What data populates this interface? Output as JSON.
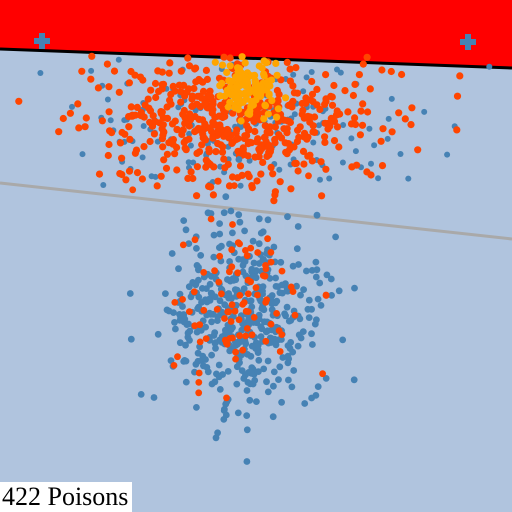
{
  "game": {
    "counter": {
      "count": "422",
      "unit": "Poisons"
    },
    "colors": {
      "background": "#b0c4de",
      "danger_zone": "#ff0000",
      "danger_edge": "#000000",
      "divider": "#a9a9a9",
      "poison": "#ff4500",
      "food": "#4682b4",
      "core": "#ffa500",
      "spawn_marker": "#4682b4"
    },
    "icons": [
      "plus-icon",
      "plus-icon"
    ]
  }
}
